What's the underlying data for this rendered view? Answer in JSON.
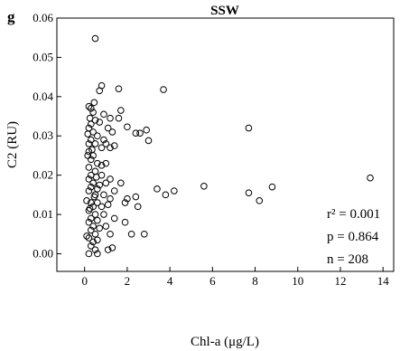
{
  "chart_data": {
    "type": "scatter",
    "panel_label": "g",
    "title": "SSW",
    "x_label": "Chl-a (μg/L)",
    "y_label": "C2 (RU)",
    "annotations": [
      "r² = 0.001",
      "p = 0.864",
      "n = 208"
    ],
    "color": "#000000",
    "xlim": [
      -1.3,
      14.5
    ],
    "ylim": [
      -0.0045,
      0.06
    ],
    "xticks": [
      0,
      2,
      4,
      6,
      8,
      10,
      12,
      14
    ],
    "yticks": [
      {
        "value": 0,
        "label": "0.00"
      },
      {
        "value": 0.01,
        "label": "0.01"
      },
      {
        "value": 0.02,
        "label": "0.02"
      },
      {
        "value": 0.03,
        "label": "0.03"
      },
      {
        "value": 0.04,
        "label": "0.04"
      },
      {
        "value": 0.05,
        "label": "0.05"
      },
      {
        "value": 0.06,
        "label": "0.06"
      }
    ],
    "x": [
      13.4,
      8.8,
      8.2,
      7.7,
      7.7,
      5.6,
      4.2,
      3.8,
      3.4,
      3.7,
      2.8,
      3.0,
      2.9,
      2.6,
      2.4,
      2.0,
      2.0,
      1.9,
      1.9,
      2.2,
      2.4,
      2.5,
      1.6,
      0.8,
      0.7,
      0.5,
      1.7,
      1.6,
      1.7,
      1.2,
      1.1,
      1.3,
      0.2,
      0.3,
      0.4,
      0.5,
      0.3,
      0.2,
      0.4,
      0.6,
      0.3,
      0.2,
      0.5,
      0.8,
      1.0,
      1.2,
      1.4,
      1.1,
      1.3,
      0.9,
      0.2,
      0.4,
      0.3,
      0.6,
      1.0,
      0.2,
      0.5,
      0.3,
      0.8,
      1.2,
      0.2,
      0.4,
      0.7,
      1.0,
      0.3,
      0.6,
      1.4,
      0.2,
      0.5,
      0.9,
      1.2,
      0.1,
      0.3,
      0.6,
      0.4,
      0.8,
      1.1,
      0.2,
      0.5,
      0.9,
      0.3,
      0.6,
      1.4,
      0.2,
      0.4,
      0.7,
      1.0,
      0.3,
      0.5,
      0.2,
      0.4,
      0.6,
      0.3,
      0.5,
      0.2,
      0.6,
      0.1,
      0.15,
      0.25,
      0.45,
      0.7,
      0.9,
      1.2,
      0.15,
      0.35,
      0.55,
      0.45,
      0.8,
      0.25
    ],
    "y": [
      0.0193,
      0.017,
      0.0135,
      0.0155,
      0.032,
      0.0172,
      0.016,
      0.015,
      0.0165,
      0.0418,
      0.005,
      0.0288,
      0.0315,
      0.0307,
      0.0307,
      0.0323,
      0.014,
      0.013,
      0.008,
      0.005,
      0.0145,
      0.012,
      0.042,
      0.0428,
      0.0415,
      0.0548,
      0.0365,
      0.0345,
      0.018,
      0.005,
      0.001,
      0.0015,
      0.0375,
      0.037,
      0.036,
      0.034,
      0.033,
      0.032,
      0.031,
      0.03,
      0.029,
      0.028,
      0.028,
      0.027,
      0.028,
      0.027,
      0.0275,
      0.032,
      0.031,
      0.029,
      0.026,
      0.025,
      0.024,
      0.023,
      0.023,
      0.022,
      0.021,
      0.02,
      0.02,
      0.019,
      0.019,
      0.018,
      0.0175,
      0.018,
      0.017,
      0.0165,
      0.016,
      0.016,
      0.015,
      0.015,
      0.014,
      0.0135,
      0.013,
      0.013,
      0.012,
      0.012,
      0.0125,
      0.011,
      0.01,
      0.01,
      0.009,
      0.0085,
      0.009,
      0.008,
      0.007,
      0.0065,
      0.007,
      0.006,
      0.005,
      0.004,
      0.003,
      0.0035,
      0.002,
      0.001,
      0.0,
      0.0,
      0.0045,
      0.025,
      0.0345,
      0.0385,
      0.0335,
      0.0355,
      0.0345,
      0.0305,
      0.0265,
      0.0195,
      0.0145,
      0.0225,
      0.0115
    ]
  }
}
